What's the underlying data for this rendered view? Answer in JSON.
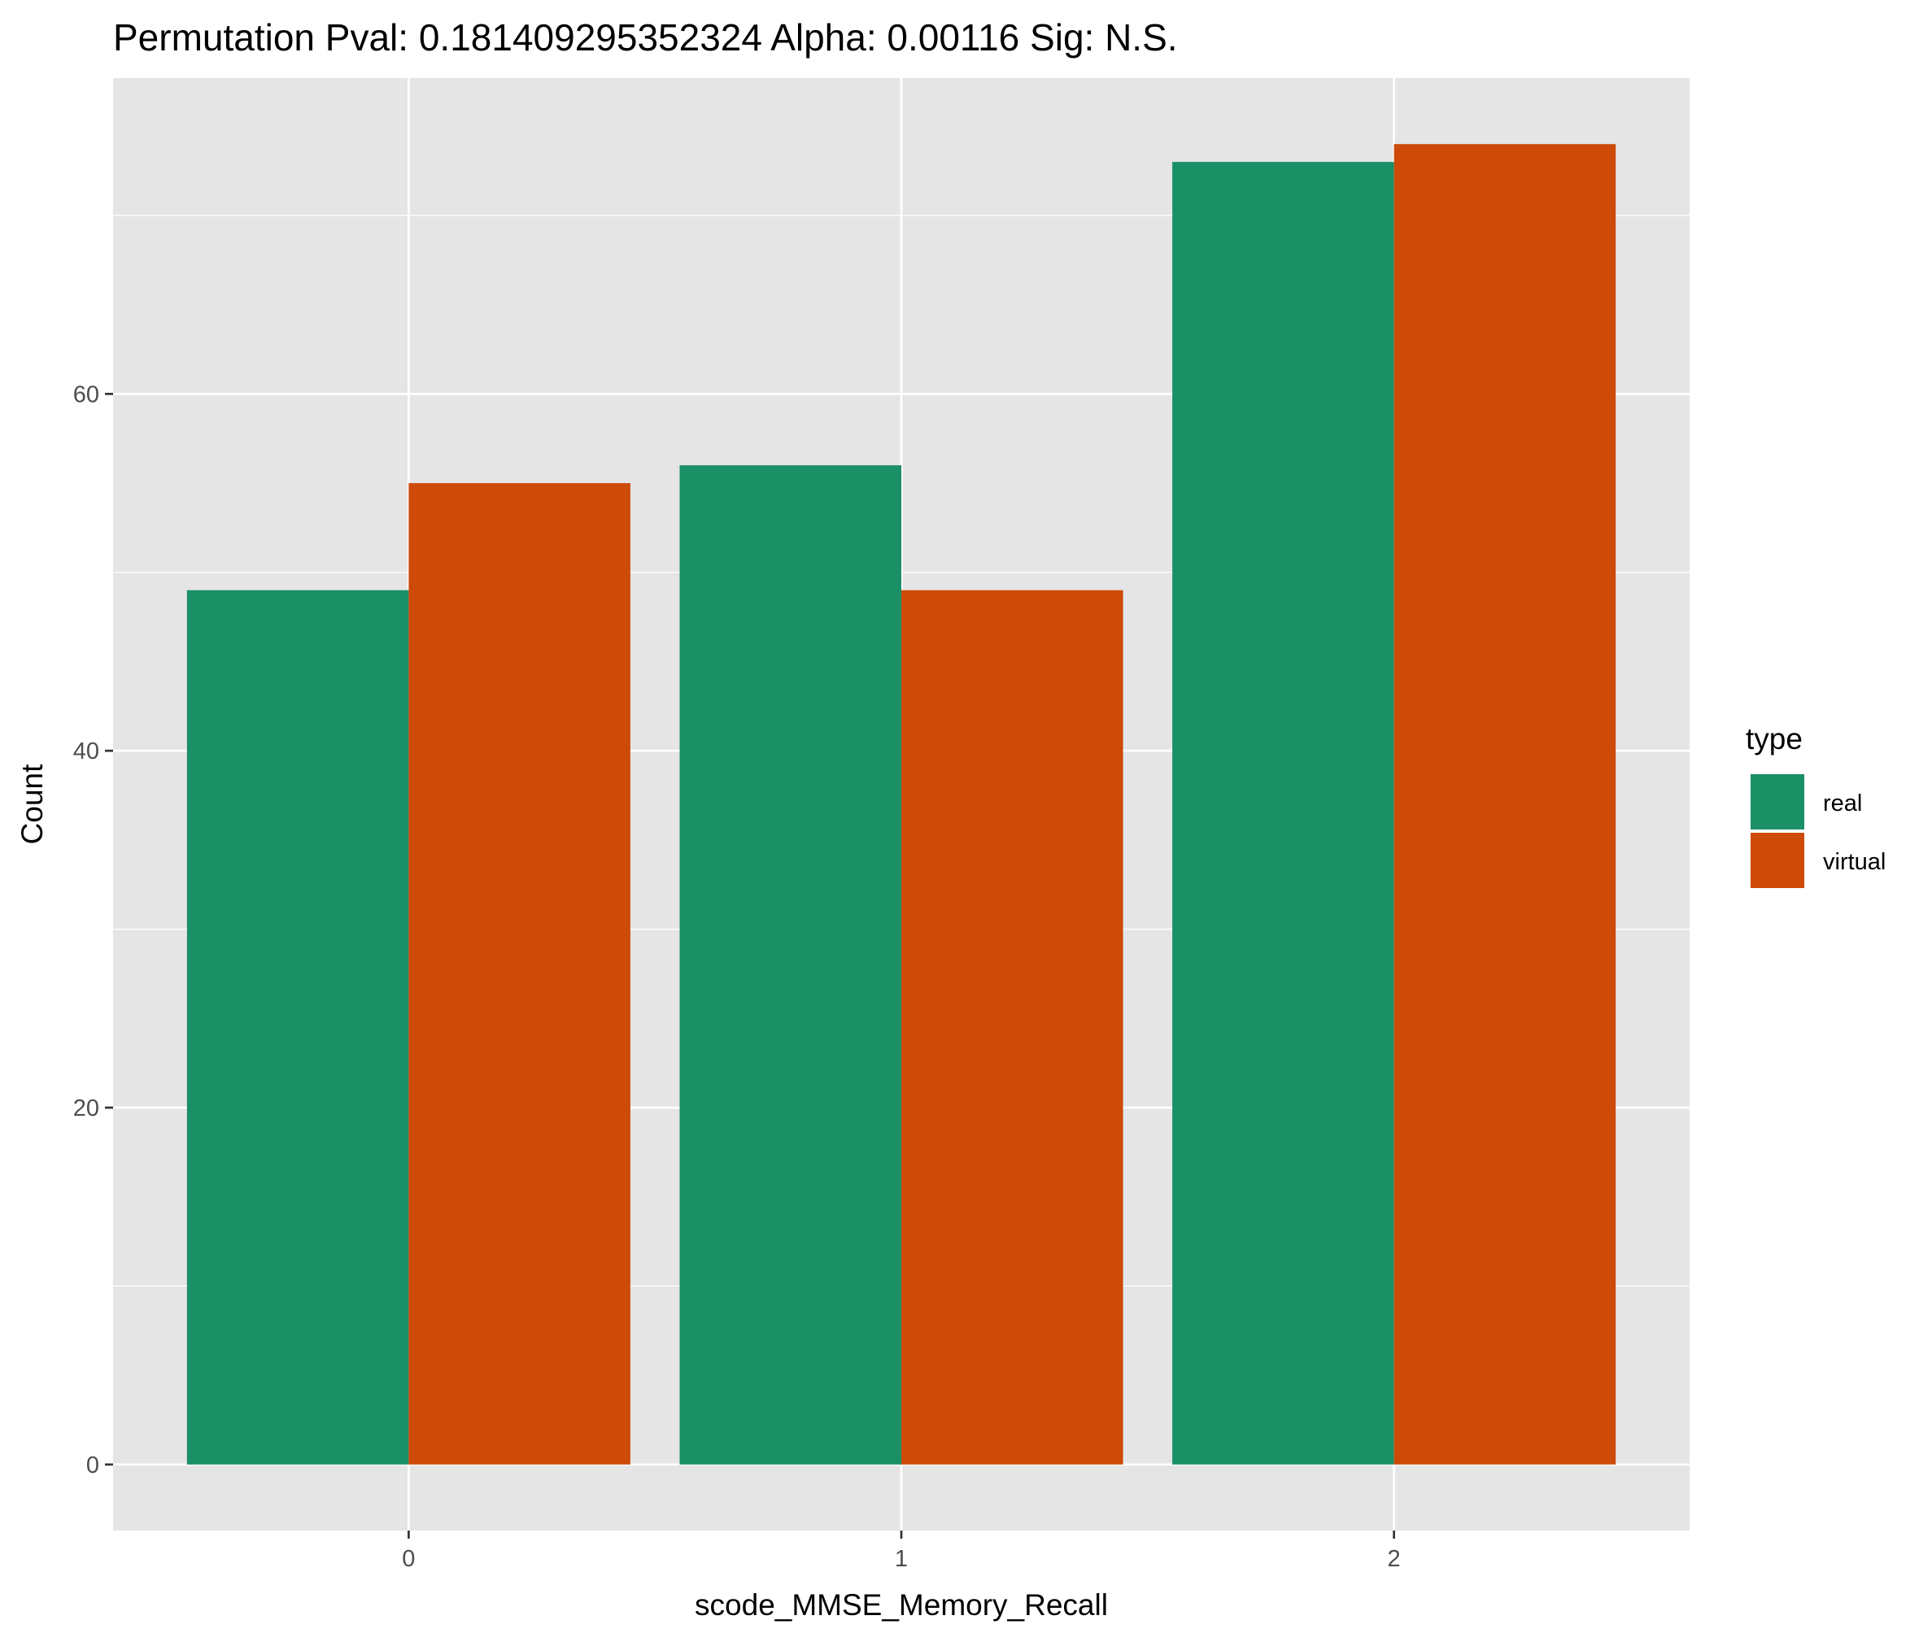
{
  "chart_data": {
    "type": "bar",
    "title": "Permutation Pval: 0.181409295352324 Alpha: 0.00116 Sig: N.S.",
    "xlabel": "scode_MMSE_Memory_Recall",
    "ylabel": "Count",
    "categories": [
      "0",
      "1",
      "2"
    ],
    "series": [
      {
        "name": "real",
        "color": "#1b9066",
        "values": [
          49,
          56,
          73
        ]
      },
      {
        "name": "virtual",
        "color": "#cd4a09",
        "values": [
          55,
          49,
          74
        ]
      }
    ],
    "ylim": [
      -3.7,
      77.7
    ],
    "yticks": [
      0,
      20,
      40,
      60
    ],
    "yticks_minor": [
      10,
      30,
      50,
      70
    ],
    "grid": true,
    "panel_background": "#e5e5e5",
    "legend": {
      "title": "type",
      "placement": "right"
    }
  }
}
